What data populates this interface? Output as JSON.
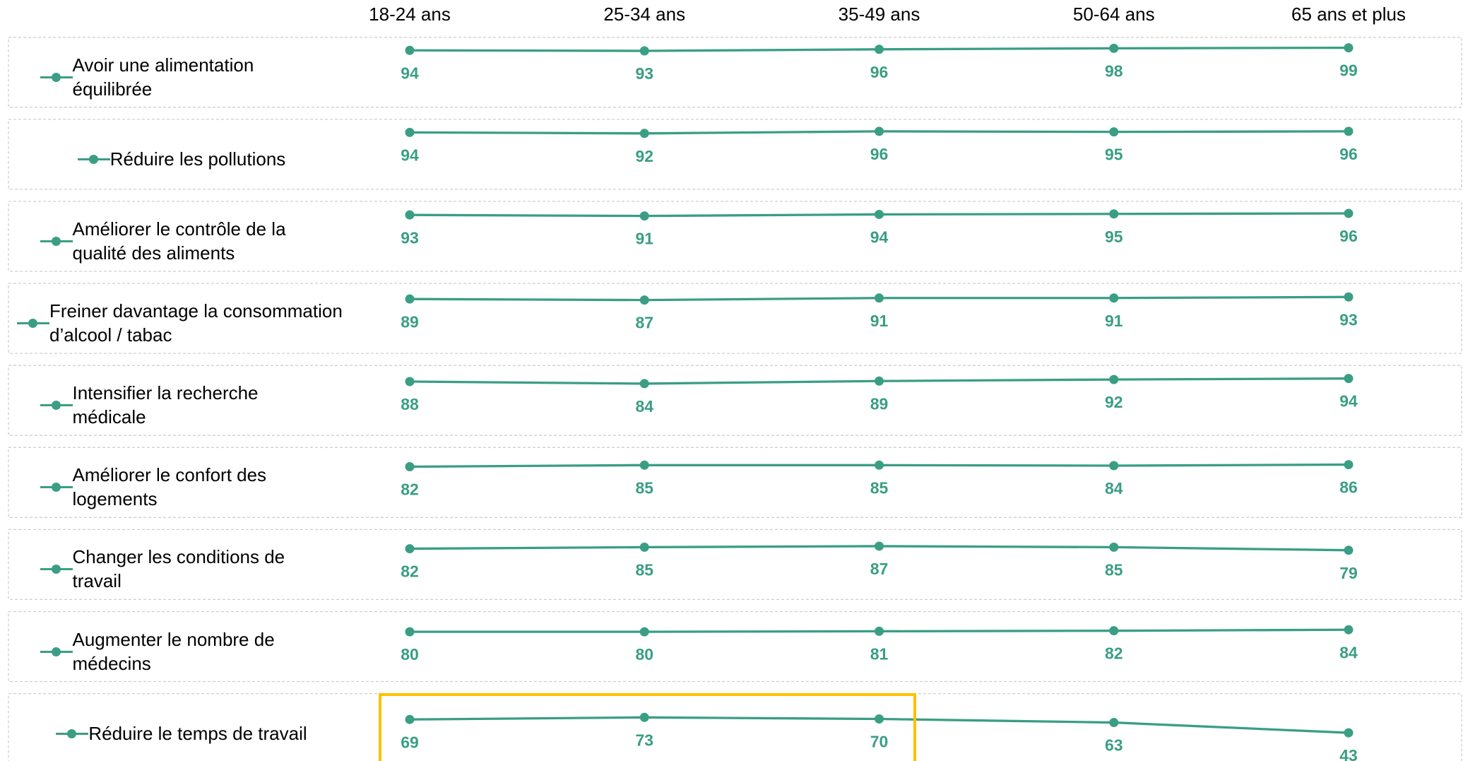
{
  "chart_data": {
    "type": "line",
    "categories": [
      "18-24 ans",
      "25-34 ans",
      "35-49 ans",
      "50-64 ans",
      "65 ans et plus"
    ],
    "ylim": [
      0,
      100
    ],
    "color": "#3a9e84",
    "series": [
      {
        "name": "Avoir une alimentation équilibrée",
        "values": [
          94,
          93,
          96,
          98,
          99
        ]
      },
      {
        "name": "Réduire les pollutions",
        "values": [
          94,
          92,
          96,
          95,
          96
        ]
      },
      {
        "name": "Améliorer le contrôle de la qualité des aliments",
        "values": [
          93,
          91,
          94,
          95,
          96
        ]
      },
      {
        "name": "Freiner davantage la consommation d’alcool / tabac",
        "values": [
          89,
          87,
          91,
          91,
          93
        ]
      },
      {
        "name": "Intensifier la recherche médicale",
        "values": [
          88,
          84,
          89,
          92,
          94
        ]
      },
      {
        "name": "Améliorer le confort des logements",
        "values": [
          82,
          85,
          85,
          84,
          86
        ]
      },
      {
        "name": "Changer les conditions de travail",
        "values": [
          82,
          85,
          87,
          85,
          79
        ]
      },
      {
        "name": "Augmenter le nombre de médecins",
        "values": [
          80,
          80,
          81,
          82,
          84
        ]
      },
      {
        "name": "Réduire le temps de travail",
        "values": [
          69,
          73,
          70,
          63,
          43
        ]
      }
    ]
  }
}
